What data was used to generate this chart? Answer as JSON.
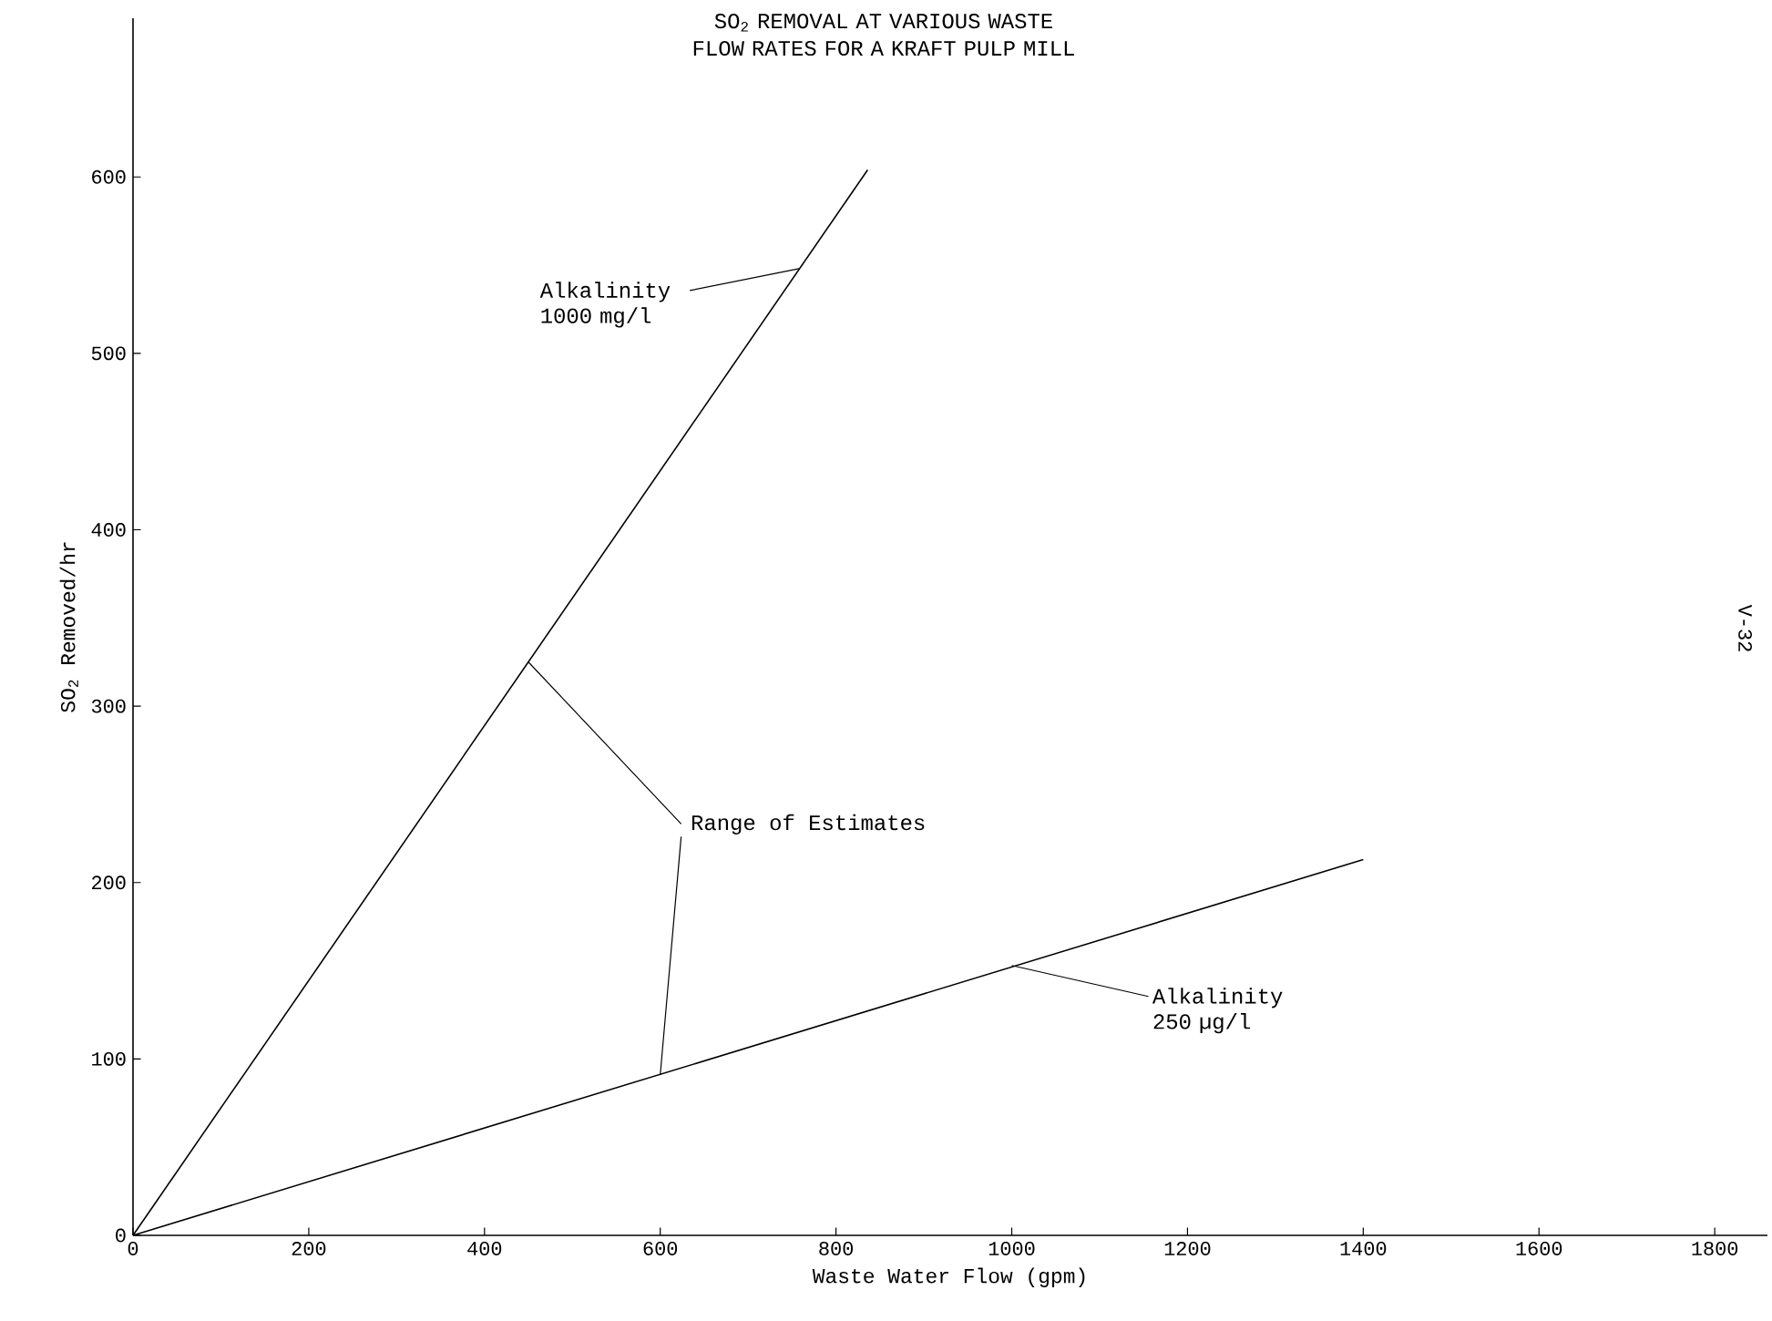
{
  "chart_data": {
    "type": "line",
    "title": "SO$_{2}$ REMOVAL AT VARIOUS WASTE FLOW RATES FOR A KRAFT PULP MILL",
    "xlabel": "Waste Water Flow (gpm)",
    "ylabel": "SO$_{2}$ Removed/hr",
    "series": [
      {
        "color": "#000000",
        "x": [
          0,
          836
        ],
        "values": [
          0,
          604
        ]
      },
      {
        "color": "#000000",
        "x": [
          0,
          1400
        ],
        "values": [
          0,
          213
        ]
      }
    ],
    "xlim": [
      0,
      1860
    ],
    "ylim": [
      0,
      690
    ],
    "xticks": [
      0,
      200,
      400,
      600,
      800,
      1000,
      1200,
      1400,
      1600,
      1800
    ],
    "yticks": [
      0,
      100,
      200,
      300,
      400,
      500,
      600
    ],
    "grid": false,
    "marker": "none",
    "line_style": "solid",
    "annotations": [
      {
        "text": "Alkalinity 1000 mg/l",
        "x": 758,
        "y": 548
      },
      {
        "text": "Range of Estimates",
        "x": 450,
        "y": 325
      },
      {
        "text": "Alkalinity 250 µg/l",
        "x": 1000,
        "y": 153
      },
      "V-32"
    ]
  }
}
